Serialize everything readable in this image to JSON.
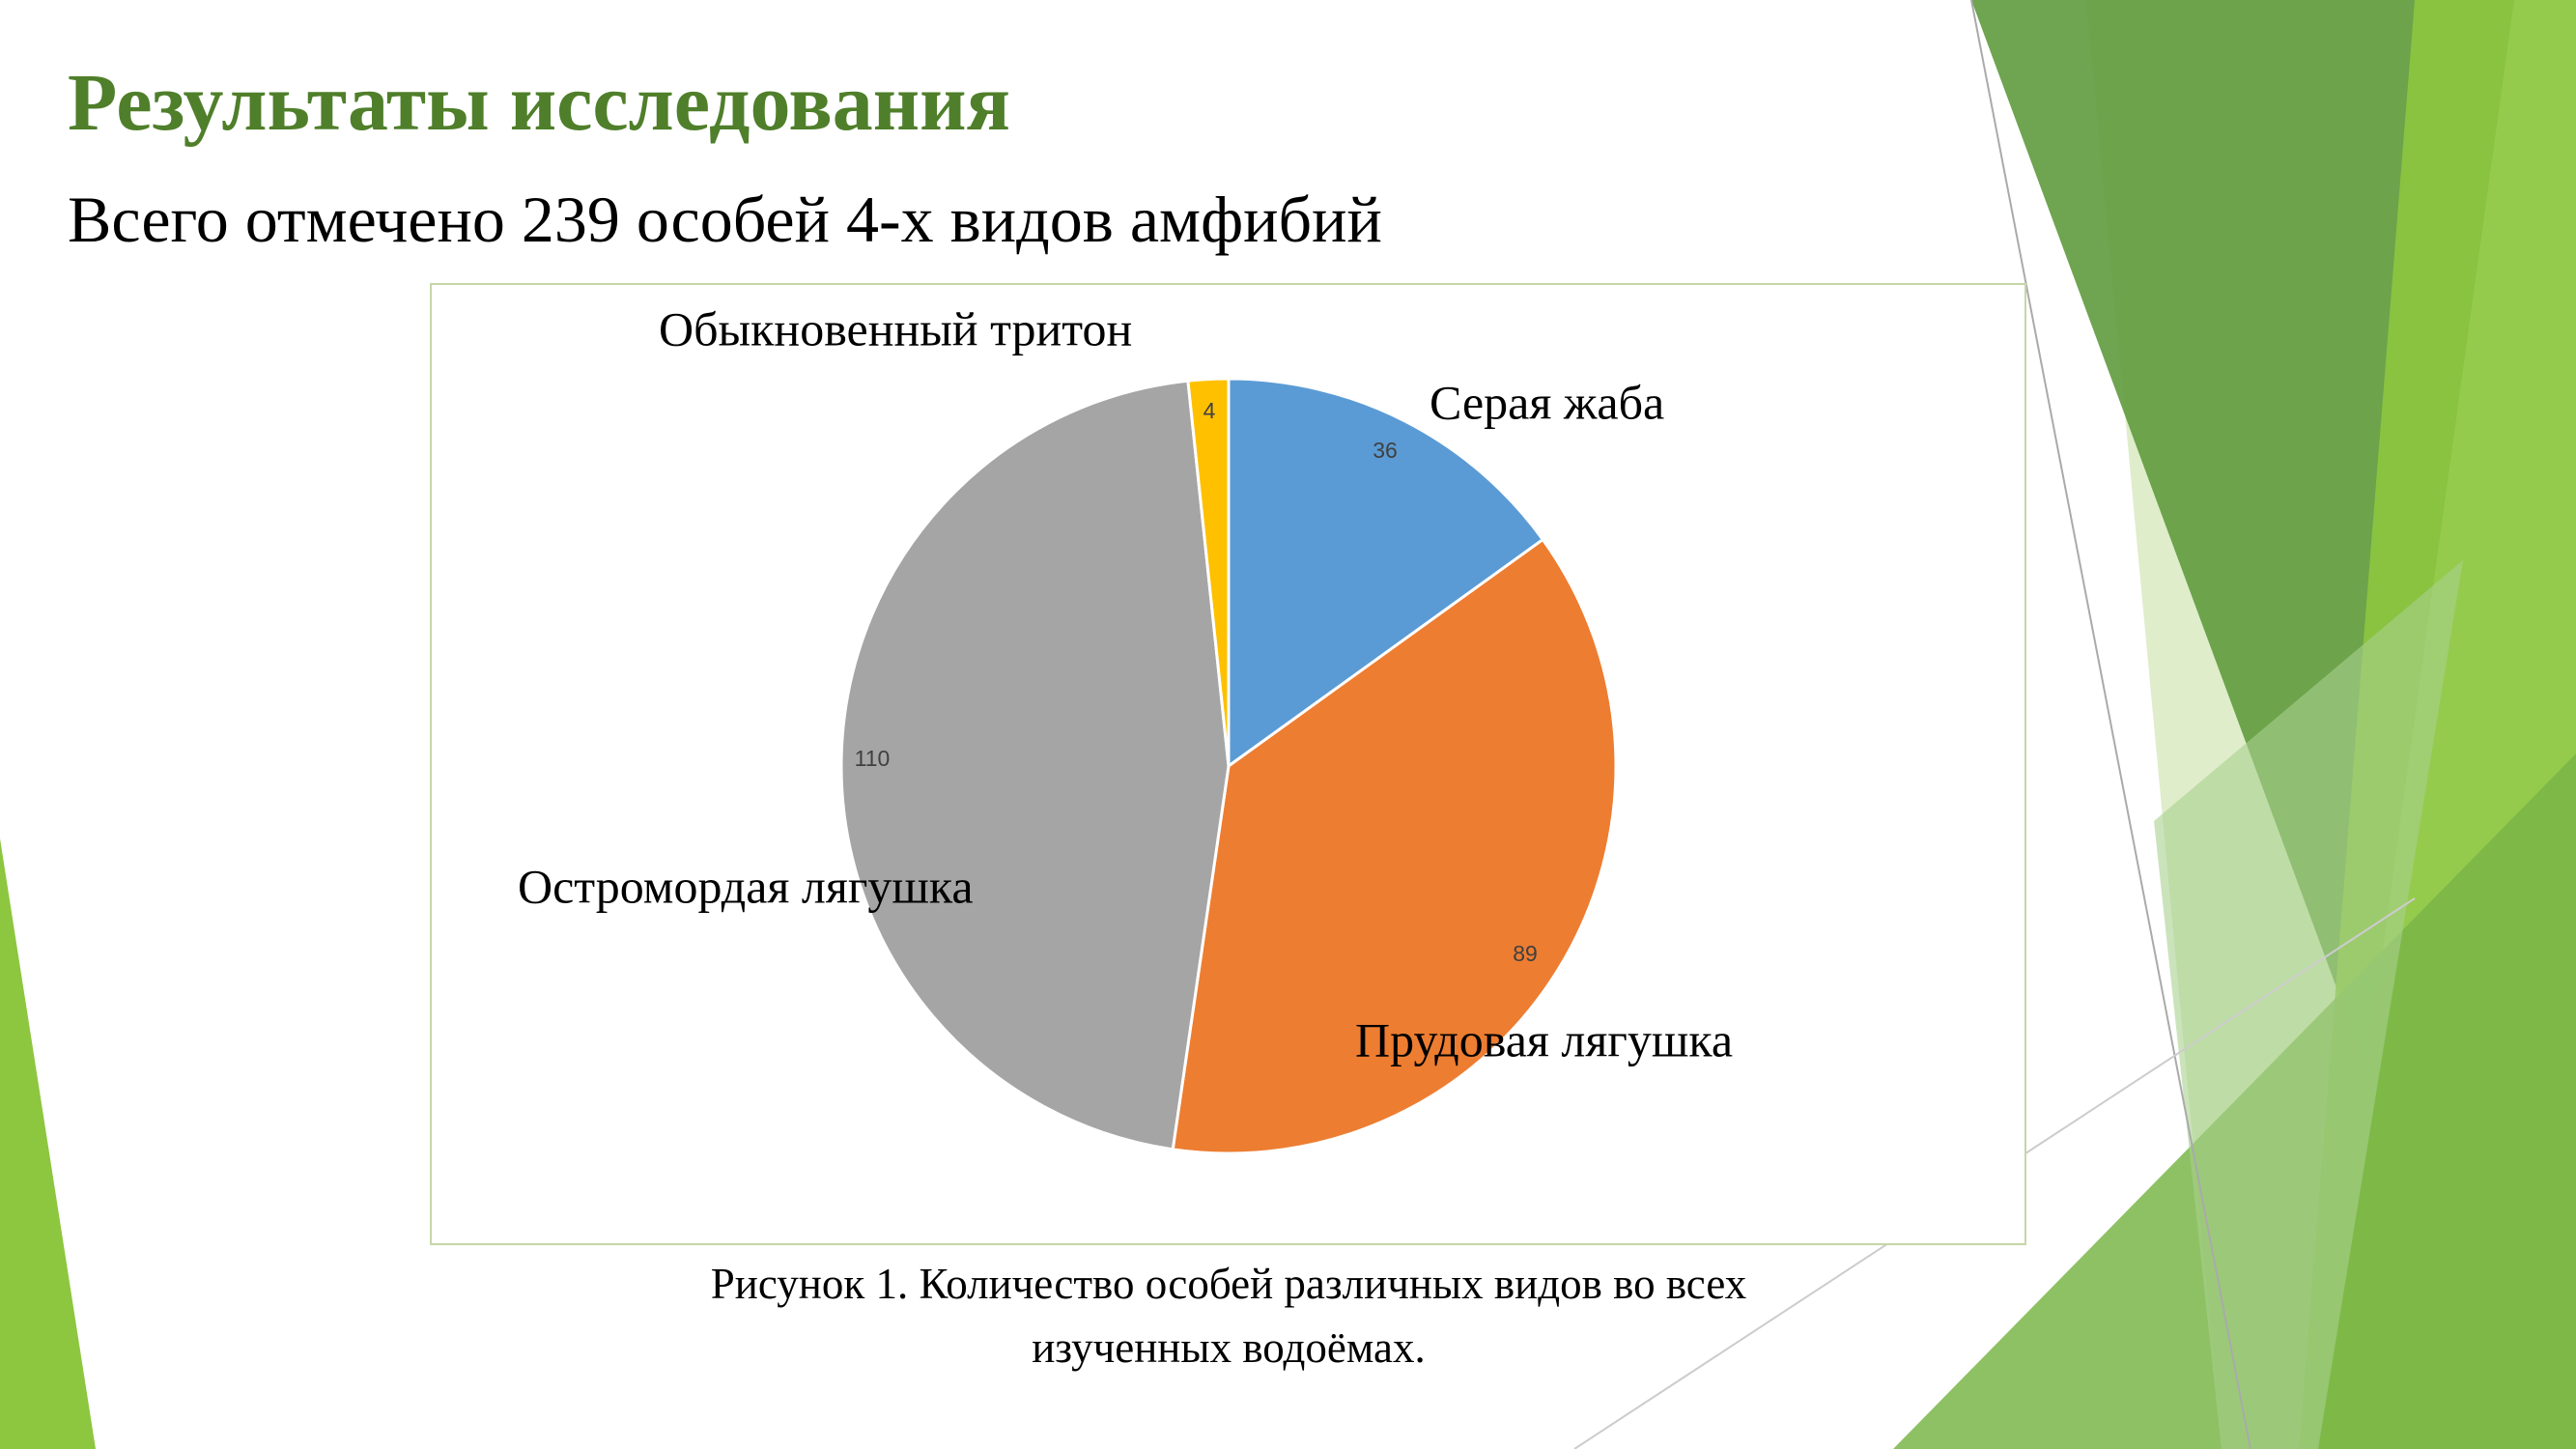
{
  "header": {
    "title": "Результаты исследования",
    "subtitle": "Всего отмечено 239 особей 4-х видов амфибий"
  },
  "chart_data": {
    "type": "pie",
    "categories": [
      "Серая жаба",
      "Прудовая лягушка",
      "Остромордая лягушка",
      "Обыкновенный тритон"
    ],
    "values": [
      36,
      89,
      110,
      4
    ],
    "colors": [
      "#5b9bd5",
      "#ed7d31",
      "#a5a5a5",
      "#ffc000"
    ],
    "caption": "Рисунок 1. Количество особей различных видов во всех изученных водоёмах."
  }
}
